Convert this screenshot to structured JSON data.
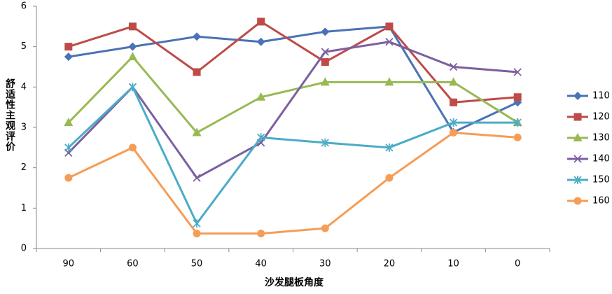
{
  "chart_data": {
    "type": "line",
    "x_label": "沙发腿板角度",
    "y_label": "舒适性主观评价",
    "categories": [
      "90",
      "60",
      "50",
      "40",
      "30",
      "20",
      "10",
      "0"
    ],
    "ylim": [
      0,
      6
    ],
    "yticks": [
      0,
      1,
      2,
      3,
      4,
      5,
      6
    ],
    "grid": false,
    "legend": "right",
    "series": [
      {
        "name": "110",
        "color": "#4a72b5",
        "marker": "diamond",
        "values": [
          4.75,
          5.0,
          5.25,
          5.12,
          5.37,
          5.5,
          2.88,
          3.62
        ]
      },
      {
        "name": "120",
        "color": "#be4b48",
        "marker": "square",
        "values": [
          5.0,
          5.5,
          4.37,
          5.62,
          4.62,
          5.5,
          3.62,
          3.75
        ]
      },
      {
        "name": "130",
        "color": "#98b954",
        "marker": "triangle",
        "values": [
          3.12,
          4.75,
          2.87,
          3.75,
          4.12,
          4.12,
          4.12,
          3.12
        ]
      },
      {
        "name": "140",
        "color": "#7d5fa0",
        "marker": "x",
        "values": [
          2.37,
          4.0,
          1.75,
          2.62,
          4.87,
          5.12,
          4.5,
          4.37
        ]
      },
      {
        "name": "150",
        "color": "#4bacc6",
        "marker": "star",
        "values": [
          2.5,
          4.0,
          0.62,
          2.75,
          2.62,
          2.5,
          3.12,
          3.12
        ]
      },
      {
        "name": "160",
        "color": "#f59d56",
        "marker": "circle",
        "values": [
          1.75,
          2.5,
          0.37,
          0.37,
          0.5,
          1.75,
          2.87,
          2.75
        ]
      }
    ]
  }
}
